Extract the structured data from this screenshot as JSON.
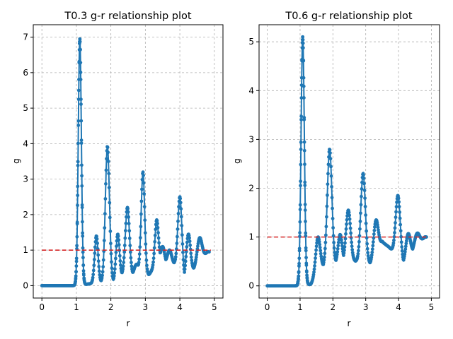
{
  "chart_data": [
    {
      "type": "line",
      "title": "T0.3 g-r relationship plot",
      "xlabel": "r",
      "ylabel": "g",
      "xlim": [
        -0.25,
        5.25
      ],
      "ylim": [
        -0.35,
        7.35
      ],
      "xticks": [
        "0",
        "1",
        "2",
        "3",
        "4",
        "5"
      ],
      "yticks": [
        "0",
        "1",
        "2",
        "3",
        "4",
        "5",
        "6",
        "7"
      ],
      "grid": true,
      "series": [
        {
          "color": "#1f77b4",
          "markers": true,
          "peaks": [
            [
              1.1,
              6.95,
              0.045
            ],
            [
              1.58,
              1.4,
              0.05
            ],
            [
              1.9,
              3.92,
              0.06
            ],
            [
              2.2,
              1.45,
              0.05
            ],
            [
              2.48,
              2.2,
              0.06
            ],
            [
              2.75,
              0.6,
              0.06
            ],
            [
              2.93,
              3.2,
              0.05
            ],
            [
              3.33,
              1.85,
              0.05
            ],
            [
              3.5,
              1.1,
              0.05
            ],
            [
              3.7,
              1.0,
              0.06
            ],
            [
              4.0,
              2.5,
              0.06
            ],
            [
              4.25,
              1.45,
              0.06
            ],
            [
              4.58,
              1.35,
              0.07
            ]
          ],
          "baseline": [
            [
              0.0,
              0.0
            ],
            [
              1.0,
              0.0
            ],
            [
              1.38,
              0.05
            ],
            [
              1.72,
              0.1
            ],
            [
              2.05,
              0.1
            ],
            [
              2.33,
              0.3
            ],
            [
              2.63,
              0.3
            ],
            [
              2.8,
              0.5
            ],
            [
              3.1,
              0.3
            ],
            [
              3.28,
              0.55
            ],
            [
              3.45,
              0.8
            ],
            [
              3.6,
              0.65
            ],
            [
              3.85,
              0.6
            ],
            [
              4.1,
              0.15
            ],
            [
              4.45,
              0.5
            ],
            [
              4.8,
              0.95
            ]
          ]
        },
        {
          "color": "#d62728",
          "dashed": true,
          "x": [
            0,
            4.9
          ],
          "y": [
            1,
            1
          ]
        }
      ]
    },
    {
      "type": "line",
      "title": "T0.6 g-r relationship plot",
      "xlabel": "r",
      "ylabel": "g",
      "xlim": [
        -0.25,
        5.25
      ],
      "ylim": [
        -0.25,
        5.35
      ],
      "xticks": [
        "0",
        "1",
        "2",
        "3",
        "4",
        "5"
      ],
      "yticks": [
        "0",
        "1",
        "2",
        "3",
        "4",
        "5"
      ],
      "grid": true,
      "series": [
        {
          "color": "#1f77b4",
          "markers": true,
          "peaks": [
            [
              1.08,
              5.1,
              0.05
            ],
            [
              1.55,
              1.0,
              0.07
            ],
            [
              1.9,
              2.8,
              0.07
            ],
            [
              2.22,
              1.05,
              0.06
            ],
            [
              2.47,
              1.55,
              0.07
            ],
            [
              2.92,
              2.3,
              0.07
            ],
            [
              3.32,
              1.35,
              0.07
            ],
            [
              3.98,
              1.85,
              0.07
            ],
            [
              4.3,
              1.07,
              0.07
            ],
            [
              4.58,
              1.08,
              0.08
            ]
          ],
          "baseline": [
            [
              0.0,
              0.0
            ],
            [
              0.95,
              0.0
            ],
            [
              1.33,
              0.03
            ],
            [
              1.73,
              0.4
            ],
            [
              2.05,
              0.45
            ],
            [
              2.33,
              0.5
            ],
            [
              2.7,
              0.5
            ],
            [
              3.15,
              0.45
            ],
            [
              3.5,
              0.9
            ],
            [
              3.7,
              0.8
            ],
            [
              4.15,
              0.45
            ],
            [
              4.45,
              0.7
            ],
            [
              4.8,
              1.0
            ]
          ]
        },
        {
          "color": "#d62728",
          "dashed": true,
          "x": [
            0,
            4.9
          ],
          "y": [
            1,
            1
          ]
        }
      ]
    }
  ]
}
